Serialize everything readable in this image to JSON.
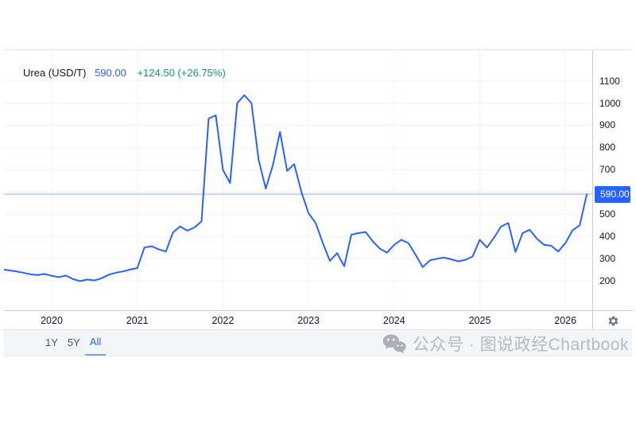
{
  "legend": {
    "symbol": "Urea (USD/T)",
    "price": "590.00",
    "change": "+124.50 (+26.75%)"
  },
  "price_scale": {
    "ticks": [
      1100,
      1000,
      900,
      800,
      700,
      500,
      400,
      300,
      200
    ],
    "current_price_label": "590.00"
  },
  "time_scale": {
    "years": [
      "2020",
      "2021",
      "2022",
      "2023",
      "2024",
      "2025",
      "2026"
    ]
  },
  "toolbar": {
    "ranges": [
      {
        "label": "1Y",
        "active": false
      },
      {
        "label": "5Y",
        "active": false
      },
      {
        "label": "All",
        "active": true
      }
    ]
  },
  "watermark": {
    "icon": "wechat-icon",
    "text": "公众号 · 图说政经Chartbook"
  },
  "colors": {
    "line": "#2962ff",
    "accent": "#2962ff",
    "positive": "#089981",
    "grid": "#f0f3fa",
    "border": "#e0e3eb",
    "scale_border": "#c9cdd6",
    "axis_text": "#131722",
    "toolbar_bg": "#f4f5f8",
    "watermark_text": "#b6bac3",
    "gear": "#787b86",
    "badge_bg": "#2962ff",
    "badge_text": "#ffffff"
  },
  "chart_data": {
    "type": "line",
    "title": "Urea (USD/T)",
    "xlabel": "",
    "ylabel": "USD/T",
    "grid": true,
    "legend_position": "top-left",
    "yticks": [
      200,
      300,
      400,
      500,
      600,
      700,
      800,
      900,
      1000,
      1100
    ],
    "ylim": [
      68,
      1238
    ],
    "x_year_ticks": [
      2020,
      2021,
      2022,
      2023,
      2024,
      2025,
      2026
    ],
    "xlim_years": [
      2019.44,
      2026.31
    ],
    "current_price": 590.0,
    "change_abs": 124.5,
    "change_pct": 26.75,
    "series": [
      {
        "name": "Urea (USD/T)",
        "dates": [
          "2019-06",
          "2019-07",
          "2019-08",
          "2019-09",
          "2019-10",
          "2019-11",
          "2019-12",
          "2020-01",
          "2020-02",
          "2020-03",
          "2020-04",
          "2020-05",
          "2020-06",
          "2020-07",
          "2020-08",
          "2020-09",
          "2020-10",
          "2020-11",
          "2020-12",
          "2021-01",
          "2021-02",
          "2021-03",
          "2021-04",
          "2021-05",
          "2021-06",
          "2021-07",
          "2021-08",
          "2021-09",
          "2021-10",
          "2021-11",
          "2021-12",
          "2022-01",
          "2022-02",
          "2022-03",
          "2022-04",
          "2022-05",
          "2022-06",
          "2022-07",
          "2022-08",
          "2022-09",
          "2022-10",
          "2022-11",
          "2022-12",
          "2023-01",
          "2023-02",
          "2023-03",
          "2023-04",
          "2023-05",
          "2023-06",
          "2023-07",
          "2023-08",
          "2023-09",
          "2023-10",
          "2023-11",
          "2023-12",
          "2024-01",
          "2024-02",
          "2024-03",
          "2024-04",
          "2024-05",
          "2024-06",
          "2024-07",
          "2024-08",
          "2024-09",
          "2024-10",
          "2024-11",
          "2024-12",
          "2025-01",
          "2025-02",
          "2025-03",
          "2025-04",
          "2025-05",
          "2025-06",
          "2025-07",
          "2025-08",
          "2025-09",
          "2025-10",
          "2025-11",
          "2025-12",
          "2026-01",
          "2026-02",
          "2026-03",
          "2026-04"
        ],
        "values": [
          252,
          248,
          243,
          237,
          230,
          226,
          231,
          223,
          217,
          224,
          208,
          199,
          206,
          202,
          212,
          228,
          237,
          243,
          251,
          258,
          350,
          356,
          342,
          332,
          418,
          445,
          426,
          440,
          468,
          930,
          945,
          700,
          640,
          1000,
          1035,
          1000,
          745,
          615,
          720,
          870,
          695,
          725,
          600,
          505,
          460,
          370,
          290,
          325,
          266,
          408,
          415,
          420,
          378,
          345,
          327,
          362,
          385,
          370,
          318,
          262,
          292,
          300,
          305,
          297,
          288,
          295,
          310,
          385,
          350,
          395,
          445,
          460,
          330,
          415,
          430,
          390,
          362,
          358,
          332,
          370,
          428,
          450,
          590
        ]
      }
    ]
  }
}
